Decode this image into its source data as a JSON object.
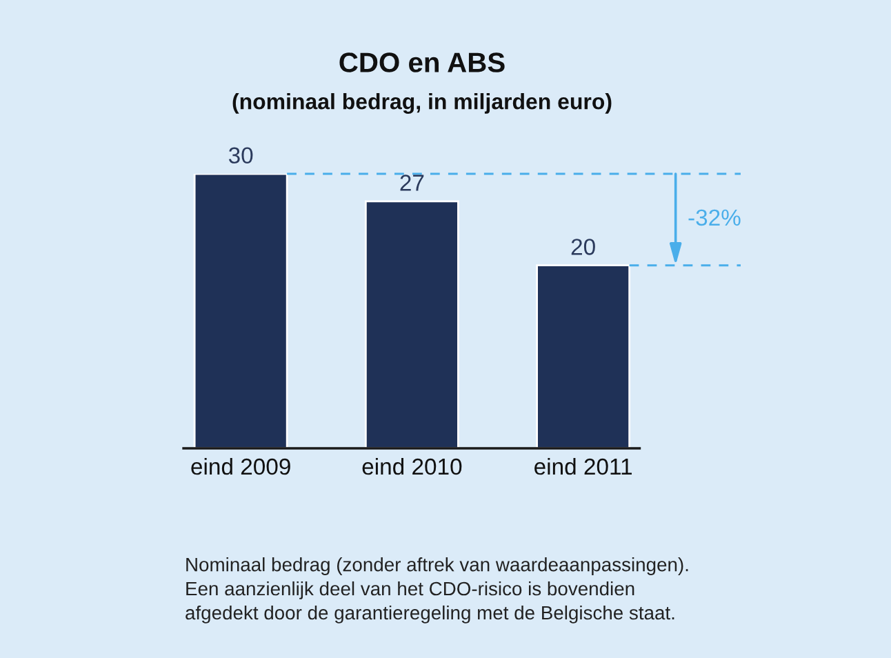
{
  "chart_data": {
    "type": "bar",
    "title": "CDO en ABS",
    "subtitle": "(nominaal bedrag, in miljarden euro)",
    "categories": [
      "eind 2009",
      "eind 2010",
      "eind 2011"
    ],
    "values": [
      30,
      27,
      20
    ],
    "color": "#1f3157",
    "ylim": [
      0,
      30
    ],
    "data_labels": true,
    "tick_labels": "x",
    "ref_lines": [
      {
        "axis": "y",
        "value": 30,
        "color": "#4aaeea",
        "line_style": "dashed"
      },
      {
        "axis": "y",
        "value": 20,
        "color": "#4aaeea",
        "line_style": "dashed"
      }
    ],
    "annotations": [
      "-32%",
      "Nominaal bedrag (zonder aftrek van waardeaanpassingen).\nEen aanzienlijk deel van het CDO-risico is bovendien\nafgedekt door de garantieregeling met de Belgische staat."
    ]
  }
}
